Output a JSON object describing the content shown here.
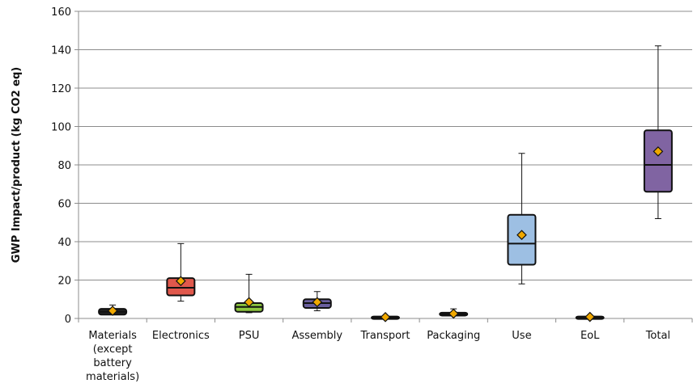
{
  "chart_data": {
    "type": "boxplot",
    "title": "",
    "xlabel": "",
    "ylabel": "GWP Impact/product (kg CO2 eq)",
    "ylim": [
      0,
      160
    ],
    "yticks": [
      0,
      20,
      40,
      60,
      80,
      100,
      120,
      140,
      160
    ],
    "grid": "horizontal",
    "categories": [
      [
        "Materials",
        "(except",
        "battery",
        "materials)"
      ],
      [
        "Electronics"
      ],
      [
        "PSU"
      ],
      [
        "Assembly"
      ],
      [
        "Transport"
      ],
      [
        "Packaging"
      ],
      [
        "Use"
      ],
      [
        "EoL"
      ],
      [
        "Total"
      ]
    ],
    "boxes": [
      {
        "min": 2,
        "q1": 2,
        "median": 3.5,
        "q3": 5,
        "max": 7,
        "mean": 4,
        "color": "#222222"
      },
      {
        "min": 9,
        "q1": 12,
        "median": 16,
        "q3": 21,
        "max": 39,
        "mean": 19.5,
        "color": "#e0584c"
      },
      {
        "min": 3,
        "q1": 3.5,
        "median": 6,
        "q3": 8,
        "max": 23,
        "mean": 8.5,
        "color": "#8dc63f"
      },
      {
        "min": 4,
        "q1": 5.5,
        "median": 8,
        "q3": 10,
        "max": 14,
        "mean": 8.5,
        "color": "#6a5f9e"
      },
      {
        "min": 0.2,
        "q1": 0.3,
        "median": 0.6,
        "q3": 1,
        "max": 1.3,
        "mean": 0.7,
        "color": "#222222"
      },
      {
        "min": 1.3,
        "q1": 1.5,
        "median": 2.2,
        "q3": 3,
        "max": 5,
        "mean": 2.5,
        "color": "#222222"
      },
      {
        "min": 18,
        "q1": 28,
        "median": 39,
        "q3": 54,
        "max": 86,
        "mean": 43.5,
        "color": "#9dbfe3"
      },
      {
        "min": 0.3,
        "q1": 0.4,
        "median": 0.7,
        "q3": 1,
        "max": 1.2,
        "mean": 0.8,
        "color": "#222222"
      },
      {
        "min": 52,
        "q1": 66,
        "median": 80,
        "q3": 98,
        "max": 142,
        "mean": 87,
        "color": "#8064a2"
      }
    ],
    "mean_marker_color": "#f0a800"
  }
}
